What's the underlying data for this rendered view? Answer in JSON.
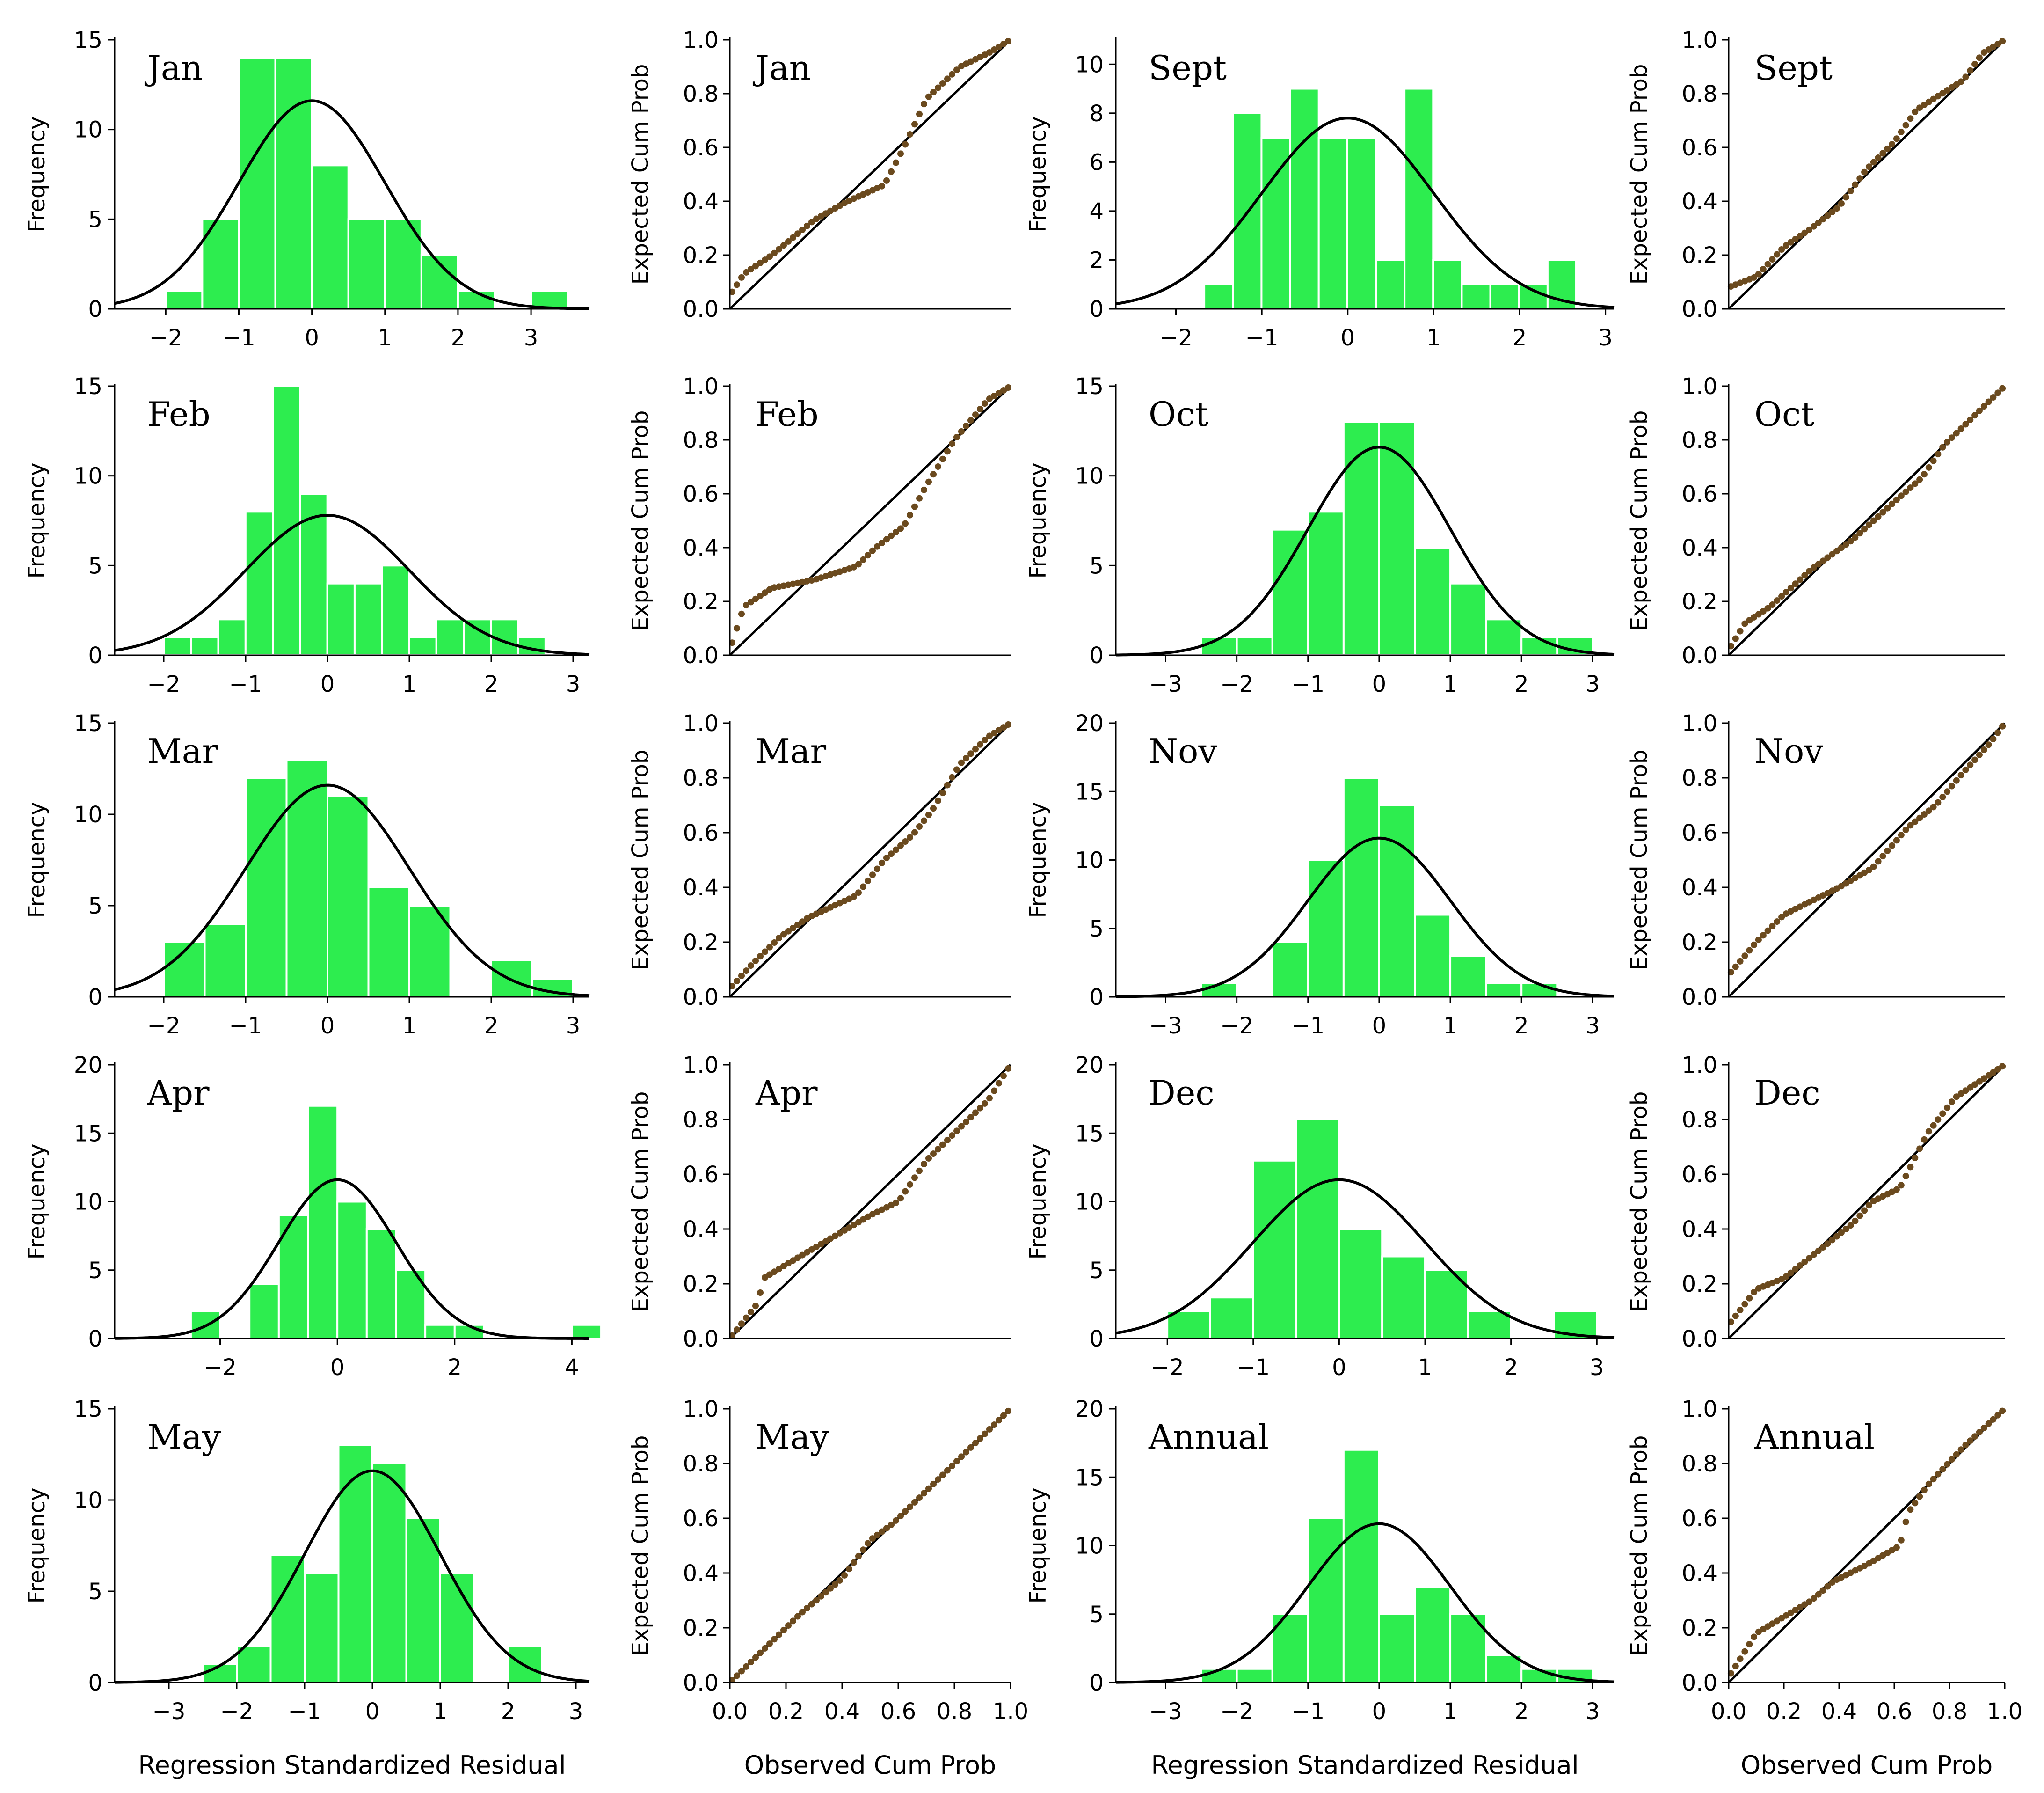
{
  "labels": {
    "frequency": "Frequency",
    "expected": "Expected Cum Prob",
    "observed": "Observed Cum Prob",
    "residual": "Regression Standardized Residual"
  },
  "colors": {
    "bar": "#2ded4f",
    "point": "#6b4a1e",
    "line": "#000000"
  },
  "chart_data": [
    {
      "id": "jan-hist",
      "type": "bar",
      "title": "Jan",
      "xlabel": "",
      "ylabel": "Frequency",
      "xlim": [
        -2.7,
        3.8
      ],
      "ylim": [
        0,
        15
      ],
      "xticks": [
        -2,
        -1,
        0,
        1,
        2,
        3
      ],
      "yticks": [
        0,
        5,
        10,
        15
      ],
      "bin_start": -2.0,
      "bin_width": 0.5,
      "values": [
        1,
        5,
        14,
        14,
        8,
        5,
        5,
        3,
        1,
        0,
        1
      ],
      "curve_peak": 11.6
    },
    {
      "id": "feb-hist",
      "type": "bar",
      "title": "Feb",
      "xlabel": "",
      "ylabel": "Frequency",
      "xlim": [
        -2.6,
        3.2
      ],
      "ylim": [
        0,
        15
      ],
      "xticks": [
        -2,
        -1,
        0,
        1,
        2,
        3
      ],
      "yticks": [
        0,
        5,
        10,
        15
      ],
      "bin_start": -2.0,
      "bin_width": 0.333,
      "values": [
        1,
        1,
        2,
        8,
        15,
        9,
        4,
        4,
        5,
        1,
        2,
        2,
        2,
        1
      ],
      "curve_peak": 7.8
    },
    {
      "id": "mar-hist",
      "type": "bar",
      "title": "Mar",
      "xlabel": "",
      "ylabel": "Frequency",
      "xlim": [
        -2.6,
        3.2
      ],
      "ylim": [
        0,
        15
      ],
      "xticks": [
        -2,
        -1,
        0,
        1,
        2,
        3
      ],
      "yticks": [
        0,
        5,
        10,
        15
      ],
      "bin_start": -2.0,
      "bin_width": 0.5,
      "values": [
        3,
        4,
        12,
        13,
        11,
        6,
        5,
        0,
        2,
        1
      ],
      "curve_peak": 11.6
    },
    {
      "id": "apr-hist",
      "type": "bar",
      "title": "Apr",
      "xlabel": "",
      "ylabel": "Frequency",
      "xlim": [
        -3.8,
        4.3
      ],
      "ylim": [
        0,
        20
      ],
      "xticks": [
        -2,
        0,
        2,
        4
      ],
      "yticks": [
        0,
        5,
        10,
        15,
        20
      ],
      "bin_start": -2.5,
      "bin_width": 0.5,
      "values": [
        2,
        0,
        4,
        9,
        17,
        10,
        8,
        5,
        1,
        1,
        0,
        0,
        0,
        1
      ],
      "curve_peak": 11.6
    },
    {
      "id": "may-hist",
      "type": "bar",
      "title": "May",
      "xlabel": "Regression Standardized Residual",
      "ylabel": "Frequency",
      "xlim": [
        -3.8,
        3.2
      ],
      "ylim": [
        0,
        15
      ],
      "xticks": [
        -3,
        -2,
        -1,
        0,
        1,
        2,
        3
      ],
      "yticks": [
        0,
        5,
        10,
        15
      ],
      "bin_start": -2.5,
      "bin_width": 0.5,
      "values": [
        1,
        2,
        7,
        6,
        13,
        12,
        9,
        6,
        0,
        2
      ],
      "curve_peak": 11.6
    },
    {
      "id": "sept-hist",
      "type": "bar",
      "title": "Sept",
      "xlabel": "",
      "ylabel": "Frequency",
      "xlim": [
        -2.7,
        3.1
      ],
      "ylim": [
        0,
        11
      ],
      "xticks": [
        -2,
        -1,
        0,
        1,
        2,
        3
      ],
      "yticks": [
        0,
        2,
        4,
        6,
        8,
        10
      ],
      "bin_start": -1.67,
      "bin_width": 0.333,
      "values": [
        1,
        8,
        7,
        9,
        7,
        7,
        2,
        9,
        2,
        1,
        1,
        1,
        2
      ],
      "curve_peak": 7.8
    },
    {
      "id": "oct-hist",
      "type": "bar",
      "title": "Oct",
      "xlabel": "",
      "ylabel": "Frequency",
      "xlim": [
        -3.7,
        3.3
      ],
      "ylim": [
        0,
        15
      ],
      "xticks": [
        -3,
        -2,
        -1,
        0,
        1,
        2,
        3
      ],
      "yticks": [
        0,
        5,
        10,
        15
      ],
      "bin_start": -2.5,
      "bin_width": 0.5,
      "values": [
        1,
        1,
        7,
        8,
        13,
        13,
        6,
        4,
        2,
        1,
        1
      ],
      "curve_peak": 11.6
    },
    {
      "id": "nov-hist",
      "type": "bar",
      "title": "Nov",
      "xlabel": "",
      "ylabel": "Frequency",
      "xlim": [
        -3.7,
        3.3
      ],
      "ylim": [
        0,
        20
      ],
      "xticks": [
        -3,
        -2,
        -1,
        0,
        1,
        2,
        3
      ],
      "yticks": [
        0,
        5,
        10,
        15,
        20
      ],
      "bin_start": -2.5,
      "bin_width": 0.5,
      "values": [
        1,
        0,
        4,
        10,
        16,
        14,
        6,
        3,
        1,
        1
      ],
      "curve_peak": 11.6
    },
    {
      "id": "dec-hist",
      "type": "bar",
      "title": "Dec",
      "xlabel": "",
      "ylabel": "Frequency",
      "xlim": [
        -2.6,
        3.2
      ],
      "ylim": [
        0,
        20
      ],
      "xticks": [
        -2,
        -1,
        0,
        1,
        2,
        3
      ],
      "yticks": [
        0,
        5,
        10,
        15,
        20
      ],
      "bin_start": -2.0,
      "bin_width": 0.5,
      "values": [
        2,
        3,
        13,
        16,
        8,
        6,
        5,
        2,
        0,
        2
      ],
      "curve_peak": 11.6
    },
    {
      "id": "annual-hist",
      "type": "bar",
      "title": "Annual",
      "xlabel": "Regression Standardized Residual",
      "ylabel": "Frequency",
      "xlim": [
        -3.7,
        3.3
      ],
      "ylim": [
        0,
        20
      ],
      "xticks": [
        -3,
        -2,
        -1,
        0,
        1,
        2,
        3
      ],
      "yticks": [
        0,
        5,
        10,
        15,
        20
      ],
      "bin_start": -2.5,
      "bin_width": 0.5,
      "values": [
        1,
        1,
        5,
        12,
        17,
        5,
        7,
        5,
        2,
        1,
        1
      ],
      "curve_peak": 11.6
    },
    {
      "id": "jan-pp",
      "type": "scatter",
      "title": "Jan",
      "xlabel": "",
      "ylabel": "Expected Cum Prob",
      "xlim": [
        0,
        1
      ],
      "ylim": [
        0,
        1
      ],
      "ticks": [
        "0.0",
        "0.2",
        "0.4",
        "0.6",
        "0.8",
        "1.0"
      ],
      "show_x_ticks": false,
      "shape": [
        [
          0,
          0.05
        ],
        [
          0.05,
          0.13
        ],
        [
          0.15,
          0.2
        ],
        [
          0.3,
          0.33
        ],
        [
          0.42,
          0.4
        ],
        [
          0.55,
          0.46
        ],
        [
          0.62,
          0.6
        ],
        [
          0.7,
          0.78
        ],
        [
          0.82,
          0.9
        ],
        [
          0.92,
          0.95
        ],
        [
          1,
          1
        ]
      ]
    },
    {
      "id": "feb-pp",
      "type": "scatter",
      "title": "Feb",
      "xlabel": "",
      "ylabel": "Expected Cum Prob",
      "xlim": [
        0,
        1
      ],
      "ylim": [
        0,
        1
      ],
      "ticks": [
        "0.0",
        "0.2",
        "0.4",
        "0.6",
        "0.8",
        "1.0"
      ],
      "show_x_ticks": false,
      "shape": [
        [
          0,
          0.02
        ],
        [
          0.05,
          0.18
        ],
        [
          0.15,
          0.25
        ],
        [
          0.3,
          0.28
        ],
        [
          0.45,
          0.33
        ],
        [
          0.52,
          0.4
        ],
        [
          0.62,
          0.48
        ],
        [
          0.7,
          0.63
        ],
        [
          0.8,
          0.8
        ],
        [
          0.92,
          0.95
        ],
        [
          1,
          1
        ]
      ]
    },
    {
      "id": "mar-pp",
      "type": "scatter",
      "title": "Mar",
      "xlabel": "",
      "ylabel": "Expected Cum Prob",
      "xlim": [
        0,
        1
      ],
      "ylim": [
        0,
        1
      ],
      "ticks": [
        "0.0",
        "0.2",
        "0.4",
        "0.6",
        "0.8",
        "1.0"
      ],
      "show_x_ticks": false,
      "shape": [
        [
          0,
          0.03
        ],
        [
          0.08,
          0.12
        ],
        [
          0.18,
          0.22
        ],
        [
          0.28,
          0.29
        ],
        [
          0.45,
          0.37
        ],
        [
          0.55,
          0.5
        ],
        [
          0.65,
          0.59
        ],
        [
          0.72,
          0.68
        ],
        [
          0.82,
          0.85
        ],
        [
          0.92,
          0.95
        ],
        [
          1,
          1
        ]
      ]
    },
    {
      "id": "apr-pp",
      "type": "scatter",
      "title": "Apr",
      "xlabel": "",
      "ylabel": "Expected Cum Prob",
      "xlim": [
        0,
        1
      ],
      "ylim": [
        0,
        1
      ],
      "ticks": [
        "0.0",
        "0.2",
        "0.4",
        "0.6",
        "0.8",
        "1.0"
      ],
      "show_x_ticks": false,
      "shape": [
        [
          0,
          0
        ],
        [
          0.1,
          0.13
        ],
        [
          0.12,
          0.22
        ],
        [
          0.2,
          0.27
        ],
        [
          0.35,
          0.36
        ],
        [
          0.5,
          0.45
        ],
        [
          0.6,
          0.5
        ],
        [
          0.7,
          0.65
        ],
        [
          0.82,
          0.77
        ],
        [
          0.92,
          0.87
        ],
        [
          1,
          1
        ]
      ]
    },
    {
      "id": "may-pp",
      "type": "scatter",
      "title": "May",
      "xlabel": "Observed Cum Prob",
      "ylabel": "Expected Cum Prob",
      "xlim": [
        0,
        1
      ],
      "ylim": [
        0,
        1
      ],
      "ticks": [
        "0.0",
        "0.2",
        "0.4",
        "0.6",
        "0.8",
        "1.0"
      ],
      "show_x_ticks": true,
      "shape": [
        [
          0,
          0
        ],
        [
          0.1,
          0.1
        ],
        [
          0.25,
          0.25
        ],
        [
          0.4,
          0.38
        ],
        [
          0.5,
          0.52
        ],
        [
          0.58,
          0.58
        ],
        [
          0.7,
          0.7
        ],
        [
          0.85,
          0.85
        ],
        [
          1,
          1
        ]
      ]
    },
    {
      "id": "sept-pp",
      "type": "scatter",
      "title": "Sept",
      "xlabel": "",
      "ylabel": "Expected Cum Prob",
      "xlim": [
        0,
        1
      ],
      "ylim": [
        0,
        1
      ],
      "ticks": [
        "0.0",
        "0.2",
        "0.4",
        "0.6",
        "0.8",
        "1.0"
      ],
      "show_x_ticks": false,
      "shape": [
        [
          0,
          0.08
        ],
        [
          0.1,
          0.12
        ],
        [
          0.2,
          0.23
        ],
        [
          0.3,
          0.3
        ],
        [
          0.4,
          0.38
        ],
        [
          0.5,
          0.52
        ],
        [
          0.6,
          0.62
        ],
        [
          0.68,
          0.74
        ],
        [
          0.85,
          0.85
        ],
        [
          0.92,
          0.95
        ],
        [
          1,
          1
        ]
      ]
    },
    {
      "id": "oct-pp",
      "type": "scatter",
      "title": "Oct",
      "xlabel": "",
      "ylabel": "Expected Cum Prob",
      "xlim": [
        0,
        1
      ],
      "ylim": [
        0,
        1
      ],
      "ticks": [
        "0.0",
        "0.2",
        "0.4",
        "0.6",
        "0.8",
        "1.0"
      ],
      "show_x_ticks": false,
      "shape": [
        [
          0,
          0.02
        ],
        [
          0.06,
          0.12
        ],
        [
          0.15,
          0.18
        ],
        [
          0.3,
          0.32
        ],
        [
          0.45,
          0.43
        ],
        [
          0.6,
          0.57
        ],
        [
          0.7,
          0.66
        ],
        [
          0.78,
          0.78
        ],
        [
          0.9,
          0.9
        ],
        [
          1,
          1
        ]
      ]
    },
    {
      "id": "nov-pp",
      "type": "scatter",
      "title": "Nov",
      "xlabel": "",
      "ylabel": "Expected Cum Prob",
      "xlim": [
        0,
        1
      ],
      "ylim": [
        0,
        1
      ],
      "ticks": [
        "0.0",
        "0.2",
        "0.4",
        "0.6",
        "0.8",
        "1.0"
      ],
      "show_x_ticks": false,
      "shape": [
        [
          0,
          0.08
        ],
        [
          0.1,
          0.2
        ],
        [
          0.2,
          0.3
        ],
        [
          0.3,
          0.35
        ],
        [
          0.4,
          0.4
        ],
        [
          0.52,
          0.47
        ],
        [
          0.65,
          0.62
        ],
        [
          0.75,
          0.7
        ],
        [
          0.85,
          0.82
        ],
        [
          0.95,
          0.93
        ],
        [
          1,
          1
        ]
      ]
    },
    {
      "id": "dec-pp",
      "type": "scatter",
      "title": "Dec",
      "xlabel": "",
      "ylabel": "Expected Cum Prob",
      "xlim": [
        0,
        1
      ],
      "ylim": [
        0,
        1
      ],
      "ticks": [
        "0.0",
        "0.2",
        "0.4",
        "0.6",
        "0.8",
        "1.0"
      ],
      "show_x_ticks": false,
      "shape": [
        [
          0,
          0.05
        ],
        [
          0.1,
          0.18
        ],
        [
          0.2,
          0.22
        ],
        [
          0.3,
          0.3
        ],
        [
          0.45,
          0.42
        ],
        [
          0.52,
          0.5
        ],
        [
          0.62,
          0.55
        ],
        [
          0.66,
          0.63
        ],
        [
          0.72,
          0.75
        ],
        [
          0.82,
          0.88
        ],
        [
          1,
          1
        ]
      ]
    },
    {
      "id": "annual-pp",
      "type": "scatter",
      "title": "Annual",
      "xlabel": "Observed Cum Prob",
      "ylabel": "Expected Cum Prob",
      "xlim": [
        0,
        1
      ],
      "ylim": [
        0,
        1
      ],
      "ticks": [
        "0.0",
        "0.2",
        "0.4",
        "0.6",
        "0.8",
        "1.0"
      ],
      "show_x_ticks": true,
      "shape": [
        [
          0,
          0.02
        ],
        [
          0.1,
          0.18
        ],
        [
          0.2,
          0.24
        ],
        [
          0.3,
          0.3
        ],
        [
          0.38,
          0.37
        ],
        [
          0.5,
          0.43
        ],
        [
          0.62,
          0.5
        ],
        [
          0.65,
          0.62
        ],
        [
          0.72,
          0.72
        ],
        [
          0.85,
          0.86
        ],
        [
          1,
          1
        ]
      ]
    }
  ]
}
